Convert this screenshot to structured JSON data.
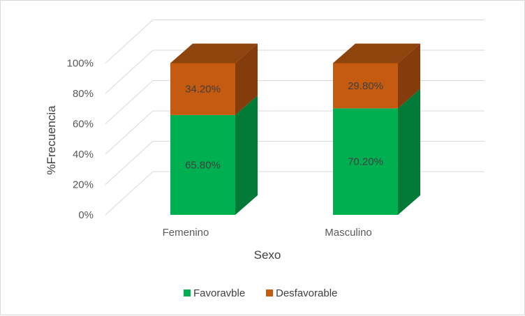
{
  "chart_data": {
    "type": "bar",
    "stacked": true,
    "three_d": true,
    "categories": [
      "Femenino",
      "Masculino"
    ],
    "series": [
      {
        "name": "Favoravble",
        "values": [
          65.8,
          70.2
        ],
        "labels": [
          "65.80%",
          "70.20%"
        ],
        "color": "#00b050",
        "side_color": "#007a36",
        "top_color": "#22c46a"
      },
      {
        "name": "Desfavorable",
        "values": [
          34.2,
          29.8
        ],
        "labels": [
          "34.20%",
          "29.80%"
        ],
        "color": "#c55a11",
        "side_color": "#843c0c",
        "top_color": "#8f430d"
      }
    ],
    "title": "",
    "xlabel": "Sexo",
    "ylabel": "%Frecuencia",
    "ylim": [
      0,
      100
    ],
    "yticks": [
      "0%",
      "20%",
      "40%",
      "60%",
      "80%",
      "100%"
    ],
    "grid": true,
    "legend": "bottom"
  }
}
